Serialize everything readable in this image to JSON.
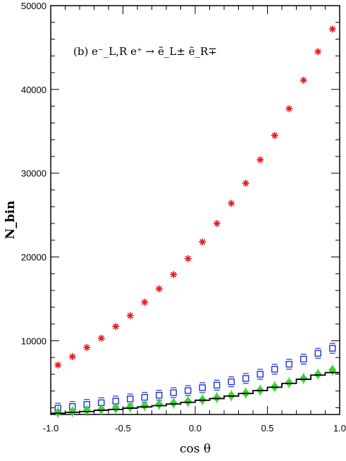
{
  "chart_data": {
    "type": "scatter",
    "panel_label": "(b)",
    "process": "e⁻_L,R e⁺ → ẽ_L± ẽ_R∓",
    "xlabel": "cos θ",
    "ylabel": "N_bin",
    "xlim": [
      -1.0,
      1.0
    ],
    "ylim": [
      1200,
      50000
    ],
    "x_ticks": [
      "-1.0",
      "-0.5",
      "0.0",
      "0.5",
      "1.0"
    ],
    "y_ticks": [
      "10000",
      "20000",
      "30000",
      "40000",
      "50000"
    ],
    "x": [
      -0.95,
      -0.85,
      -0.75,
      -0.65,
      -0.55,
      -0.45,
      -0.35,
      -0.25,
      -0.15,
      -0.05,
      0.05,
      0.15,
      0.25,
      0.35,
      0.45,
      0.55,
      0.65,
      0.75,
      0.85,
      0.95
    ],
    "series": [
      {
        "marker": "asterisk",
        "color": "#e8191e",
        "values": [
          7100,
          8100,
          9200,
          10300,
          11700,
          13000,
          14600,
          16200,
          17900,
          19800,
          21800,
          24000,
          26400,
          28800,
          31600,
          34500,
          37700,
          41100,
          44500,
          47200
        ]
      },
      {
        "marker": "open-square",
        "color": "#1f2fd8",
        "values": [
          1950,
          2150,
          2400,
          2600,
          2800,
          3050,
          3250,
          3500,
          3800,
          4050,
          4400,
          4700,
          5100,
          5500,
          6000,
          6600,
          7200,
          7800,
          8500,
          9100
        ]
      },
      {
        "marker": "filled-diamond",
        "color": "#3fd13a",
        "values": [
          1450,
          1550,
          1700,
          1800,
          1950,
          2100,
          2250,
          2400,
          2550,
          2750,
          2950,
          3200,
          3450,
          3750,
          4100,
          4500,
          5000,
          5500,
          6000,
          6500
        ]
      },
      {
        "marker": "histogram",
        "color": "#000000",
        "values": [
          1350,
          1450,
          1550,
          1700,
          1800,
          1950,
          2100,
          2250,
          2450,
          2650,
          2900,
          3100,
          3400,
          3700,
          4050,
          4450,
          4900,
          5400,
          5900,
          6200
        ]
      }
    ]
  }
}
